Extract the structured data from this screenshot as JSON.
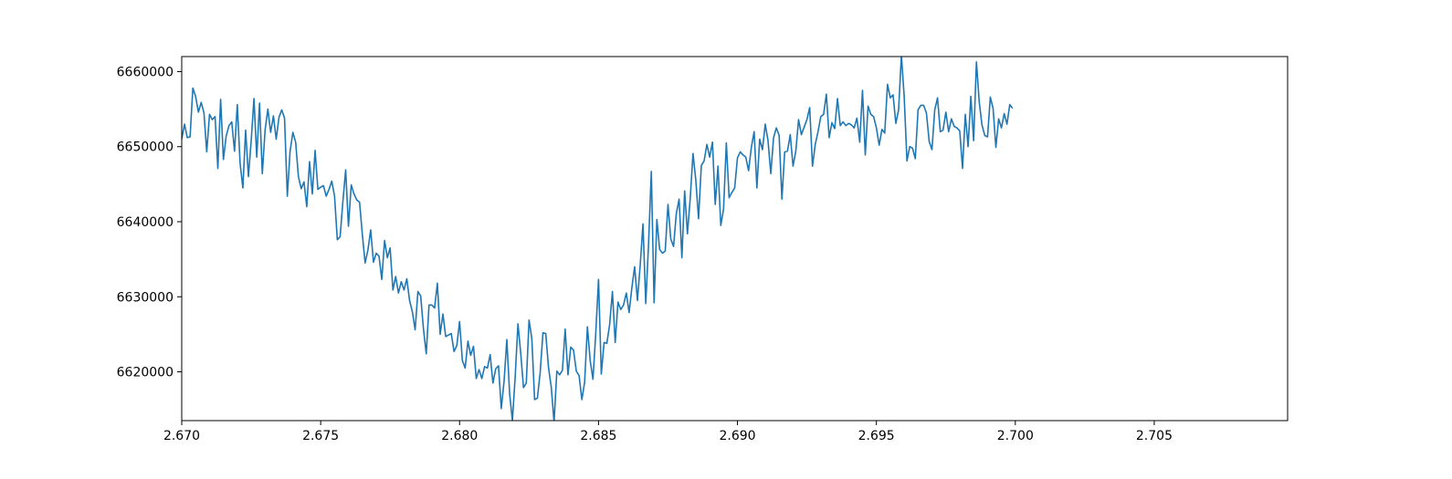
{
  "chart_data": {
    "type": "line",
    "title": "",
    "xlabel": "",
    "ylabel": "",
    "xlim": [
      2.67,
      2.7098
    ],
    "ylim": [
      6613500,
      6662000
    ],
    "grid": false,
    "x_ticks": [
      "2.670",
      "2.675",
      "2.680",
      "2.685",
      "2.690",
      "2.695",
      "2.700",
      "2.705"
    ],
    "y_ticks": [
      "6620000",
      "6630000",
      "6640000",
      "6650000",
      "6660000"
    ],
    "line_color": "#1f77b4",
    "x_start": 2.67,
    "x_step": 0.0001,
    "series": [
      {
        "values": [
          6651000,
          6653000,
          6651200,
          6651300,
          6657800,
          6656700,
          6654600,
          6655900,
          6654500,
          6649300,
          6654300,
          6653600,
          6654000,
          6647100,
          6656300,
          6648300,
          6651400,
          6652800,
          6653300,
          6649400,
          6655600,
          6647800,
          6644500,
          6652200,
          6646000,
          6650800,
          6656400,
          6648600,
          6655800,
          6646400,
          6652200,
          6655000,
          6651900,
          6654100,
          6651000,
          6653900,
          6654900,
          6653800,
          6643400,
          6649400,
          6651900,
          6650600,
          6646000,
          6644400,
          6645300,
          6642000,
          6648000,
          6643700,
          6649500,
          6644300,
          6644600,
          6644800,
          6643400,
          6644300,
          6645400,
          6643400,
          6637600,
          6638000,
          6642700,
          6646900,
          6639400,
          6644900,
          6643700,
          6642900,
          6642600,
          6638300,
          6634500,
          6636200,
          6638900,
          6634600,
          6635800,
          6635400,
          6632300,
          6637500,
          6635200,
          6636500,
          6630900,
          6632700,
          6630500,
          6632000,
          6630900,
          6632400,
          6629500,
          6628000,
          6625600,
          6630700,
          6630100,
          6625700,
          6622400,
          6628900,
          6628900,
          6628500,
          6631800,
          6625000,
          6627700,
          6624700,
          6624900,
          6625100,
          6622700,
          6623500,
          6626700,
          6621500,
          6620500,
          6624100,
          6622200,
          6623400,
          6619100,
          6620300,
          6619100,
          6620700,
          6620500,
          6622300,
          6618500,
          6620400,
          6620800,
          6615100,
          6618700,
          6624300,
          6617100,
          6613500,
          6619300,
          6626400,
          6622500,
          6617900,
          6618500,
          6626900,
          6624400,
          6616300,
          6616500,
          6619900,
          6625200,
          6625100,
          6620600,
          6617900,
          6613300,
          6620100,
          6619600,
          6620200,
          6625700,
          6619600,
          6623300,
          6622900,
          6620100,
          6619500,
          6616300,
          6618600,
          6626000,
          6621500,
          6619000,
          6625100,
          6632300,
          6619700,
          6623900,
          6623800,
          6626300,
          6630700,
          6623900,
          6629300,
          6628300,
          6628900,
          6630500,
          6627900,
          6631200,
          6634000,
          6629500,
          6634200,
          6639700,
          6629100,
          6637000,
          6646700,
          6629200,
          6640300,
          6636300,
          6635800,
          6636100,
          6642300,
          6637700,
          6636700,
          6641100,
          6643000,
          6635200,
          6644100,
          6638400,
          6643100,
          6649100,
          6645600,
          6640400,
          6647500,
          6648100,
          6650300,
          6648600,
          6650600,
          6642300,
          6647400,
          6639500,
          6641700,
          6650500,
          6643200,
          6643900,
          6644500,
          6648500,
          6649300,
          6648900,
          6648600,
          6646800,
          6649900,
          6652000,
          6644500,
          6651000,
          6649600,
          6653000,
          6650800,
          6646400,
          6651200,
          6652500,
          6651500,
          6643000,
          6649300,
          6649400,
          6651600,
          6647400,
          6649400,
          6653600,
          6651600,
          6652600,
          6653600,
          6655200,
          6647400,
          6650300,
          6652000,
          6654000,
          6654300,
          6657000,
          6651200,
          6653200,
          6652400,
          6656400,
          6652800,
          6653300,
          6652800,
          6653100,
          6652900,
          6652500,
          6653800,
          6650600,
          6657500,
          6648900,
          6655400,
          6654300,
          6654000,
          6652500,
          6650200,
          6652300,
          6651800,
          6658300,
          6656500,
          6656900,
          6653100,
          6654900,
          6662200,
          6656700,
          6648100,
          6650000,
          6649800,
          6648400,
          6654900,
          6655500,
          6655500,
          6654500,
          6650700,
          6649600,
          6654900,
          6656500,
          6652000,
          6652200,
          6654600,
          6652000,
          6653700,
          6652700,
          6652500,
          6652100,
          6647100,
          6654300,
          6650000,
          6656700,
          6650800,
          6661300,
          6656000,
          6652900,
          6651500,
          6651300,
          6656600,
          6655100,
          6649900,
          6653700,
          6652500,
          6654400,
          6653000,
          6655600,
          6655100
        ]
      }
    ]
  }
}
